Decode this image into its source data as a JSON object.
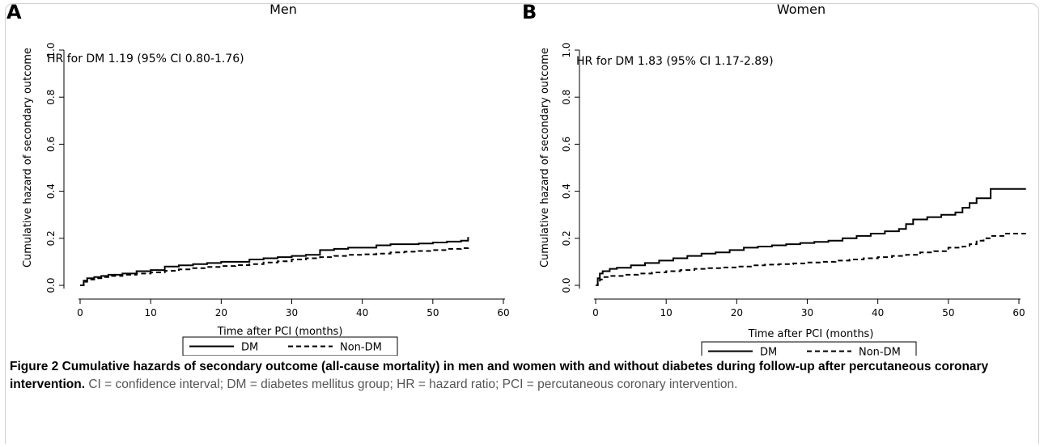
{
  "caption": {
    "title": "Figure 2 Cumulative hazards of secondary outcome (all-cause mortality) in men and women with and without diabetes during follow-up after percutaneous coronary intervention.",
    "text": " CI = confidence interval; DM = diabetes mellitus group; HR = hazard ratio; PCI = percutaneous coronary intervention."
  },
  "colors": {
    "line": "#000000",
    "legend_border": "#000000",
    "frame": "#cfcfcf",
    "caption": "#555555"
  },
  "chart_data": [
    {
      "type": "line",
      "panel_label": "A",
      "title": "Men",
      "xlabel": "Time after PCI (months)",
      "ylabel": "Cumulative hazard of secondary outcome",
      "annotation": "HR for DM 1.19 (95% CI 0.80-1.76)",
      "xlim": [
        0,
        62
      ],
      "ylim": [
        -0.02,
        1.05
      ],
      "xticks": [
        0,
        10,
        20,
        30,
        40,
        50,
        60
      ],
      "yticks": [
        0.0,
        0.2,
        0.4,
        0.6,
        0.8,
        1.0
      ],
      "xtick_labels": [
        "0",
        "10",
        "20",
        "30",
        "40",
        "50",
        "60"
      ],
      "ytick_labels": [
        "0.0",
        "0.2",
        "0.4",
        "0.6",
        "0.8",
        "1.0"
      ],
      "legend_position": "bottom",
      "series": [
        {
          "name": "DM",
          "style": "solid",
          "x": [
            0,
            0.5,
            1,
            2,
            3,
            4,
            6,
            8,
            10,
            12,
            14,
            16,
            18,
            20,
            22,
            24,
            26,
            28,
            30,
            32,
            34,
            36,
            38,
            40,
            42,
            44,
            46,
            48,
            50,
            52,
            54,
            55
          ],
          "y": [
            0.0,
            0.02,
            0.03,
            0.035,
            0.04,
            0.045,
            0.05,
            0.06,
            0.065,
            0.08,
            0.085,
            0.09,
            0.095,
            0.1,
            0.1,
            0.11,
            0.115,
            0.12,
            0.125,
            0.13,
            0.15,
            0.155,
            0.16,
            0.16,
            0.17,
            0.175,
            0.175,
            0.178,
            0.182,
            0.186,
            0.19,
            0.205
          ]
        },
        {
          "name": "Non-DM",
          "style": "dashed",
          "x": [
            0,
            0.5,
            1,
            2,
            3,
            4,
            6,
            8,
            10,
            12,
            14,
            16,
            18,
            20,
            22,
            24,
            26,
            28,
            30,
            32,
            34,
            36,
            38,
            40,
            42,
            44,
            46,
            48,
            50,
            52,
            54,
            55
          ],
          "y": [
            0.0,
            0.015,
            0.025,
            0.03,
            0.035,
            0.04,
            0.045,
            0.05,
            0.055,
            0.062,
            0.068,
            0.073,
            0.078,
            0.082,
            0.086,
            0.09,
            0.097,
            0.102,
            0.11,
            0.115,
            0.12,
            0.125,
            0.13,
            0.132,
            0.135,
            0.14,
            0.143,
            0.146,
            0.15,
            0.155,
            0.158,
            0.165
          ]
        }
      ]
    },
    {
      "type": "line",
      "panel_label": "B",
      "title": "Women",
      "xlabel": "Time after PCI (months)",
      "ylabel": "Cumulative hazard of secondary outcome",
      "annotation": "HR for DM 1.83 (95% CI 1.17-2.89)",
      "xlim": [
        0,
        62
      ],
      "ylim": [
        -0.02,
        1.05
      ],
      "xticks": [
        0,
        10,
        20,
        30,
        40,
        50,
        60
      ],
      "yticks": [
        0.0,
        0.2,
        0.4,
        0.6,
        0.8,
        1.0
      ],
      "xtick_labels": [
        "0",
        "10",
        "20",
        "30",
        "40",
        "50",
        "60"
      ],
      "ytick_labels": [
        "0.0",
        "0.2",
        "0.4",
        "0.6",
        "0.8",
        "1.0"
      ],
      "legend_position": "bottom",
      "series": [
        {
          "name": "DM",
          "style": "solid",
          "x": [
            0,
            0.3,
            0.6,
            1,
            2,
            3,
            5,
            7,
            9,
            11,
            13,
            15,
            17,
            19,
            21,
            23,
            25,
            27,
            29,
            31,
            33,
            35,
            37,
            39,
            41,
            43,
            44,
            45,
            47,
            49,
            51,
            52,
            53,
            54,
            55,
            56,
            58,
            61
          ],
          "y": [
            0.0,
            0.03,
            0.05,
            0.06,
            0.07,
            0.075,
            0.085,
            0.095,
            0.105,
            0.115,
            0.125,
            0.135,
            0.14,
            0.15,
            0.16,
            0.165,
            0.17,
            0.175,
            0.18,
            0.185,
            0.19,
            0.2,
            0.21,
            0.22,
            0.23,
            0.24,
            0.26,
            0.28,
            0.29,
            0.3,
            0.31,
            0.33,
            0.35,
            0.37,
            0.37,
            0.41,
            0.41,
            0.41
          ]
        },
        {
          "name": "Non-DM",
          "style": "dashed",
          "x": [
            0,
            0.3,
            0.6,
            1,
            2,
            4,
            6,
            8,
            10,
            12,
            14,
            16,
            18,
            20,
            22,
            24,
            26,
            28,
            30,
            32,
            34,
            36,
            38,
            40,
            42,
            44,
            46,
            48,
            50,
            52,
            53,
            54,
            55,
            56,
            58,
            61
          ],
          "y": [
            0.0,
            0.015,
            0.025,
            0.035,
            0.04,
            0.045,
            0.05,
            0.055,
            0.06,
            0.065,
            0.07,
            0.073,
            0.076,
            0.08,
            0.085,
            0.088,
            0.09,
            0.093,
            0.097,
            0.1,
            0.105,
            0.11,
            0.115,
            0.12,
            0.125,
            0.13,
            0.14,
            0.145,
            0.16,
            0.165,
            0.175,
            0.19,
            0.2,
            0.21,
            0.22,
            0.22
          ]
        }
      ]
    }
  ]
}
